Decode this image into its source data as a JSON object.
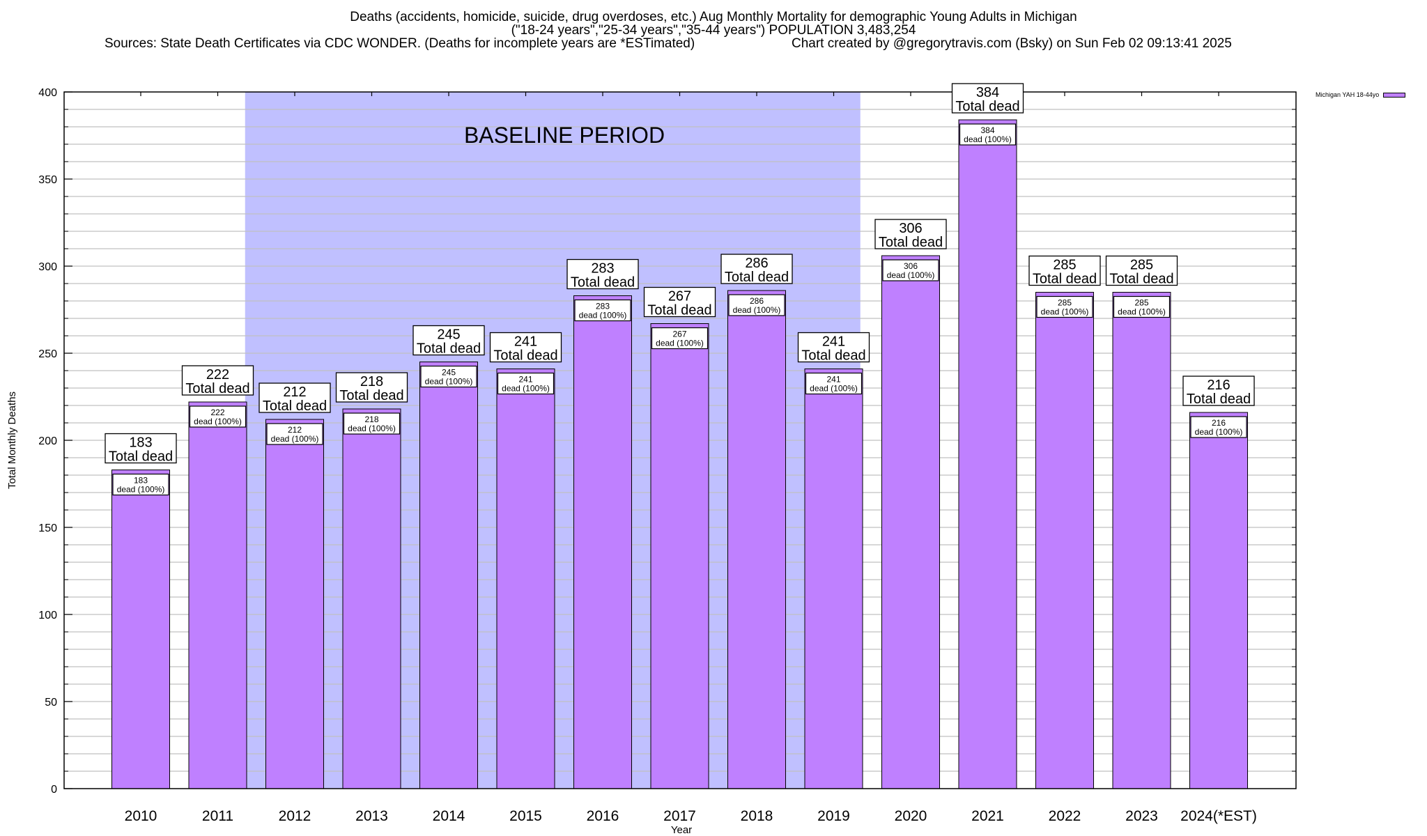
{
  "chart_data": {
    "type": "bar",
    "title_line_1": "Deaths (accidents, homicide, suicide, drug overdoses, etc.) Aug Monthly Mortality for demographic Young Adults in Michigan",
    "title_line_2": "(\"18-24 years\",\"25-34 years\",\"35-44 years\") POPULATION 3,483,254",
    "sources": "Sources: State Death Certificates via CDC WONDER. (Deaths for incomplete years are *ESTimated)",
    "credit": "Chart created by @gregorytravis.com (Bsky) on Sun Feb 02 09:13:41 2025",
    "xlabel": "Year",
    "ylabel": "Total Monthly Deaths",
    "ylim": [
      0,
      400
    ],
    "yticks": [
      "0",
      "50",
      "100",
      "150",
      "200",
      "250",
      "300",
      "350",
      "400"
    ],
    "ytick_values": [
      0,
      50,
      100,
      150,
      200,
      250,
      300,
      350,
      400
    ],
    "minor_grid_step": 10,
    "grid": true,
    "legend_position": "top-right",
    "legend": [
      "Michigan YAH 18-44yo"
    ],
    "categories": [
      "2010",
      "2011",
      "2012",
      "2013",
      "2014",
      "2015",
      "2016",
      "2017",
      "2018",
      "2019",
      "2020",
      "2021",
      "2022",
      "2023",
      "2024(*EST)"
    ],
    "series": [
      {
        "name": "Michigan YAH 18-44yo",
        "values": [
          183,
          222,
          212,
          218,
          245,
          241,
          283,
          267,
          286,
          241,
          306,
          384,
          285,
          285,
          216
        ],
        "color": "#bf80ff"
      }
    ],
    "total_label_suffix": "Total dead",
    "inner_label_suffix": "dead (100%)",
    "baseline_period": {
      "label": "BASELINE PERIOD",
      "start": "2012",
      "end": "2019",
      "color": "#c0c0ff"
    }
  }
}
